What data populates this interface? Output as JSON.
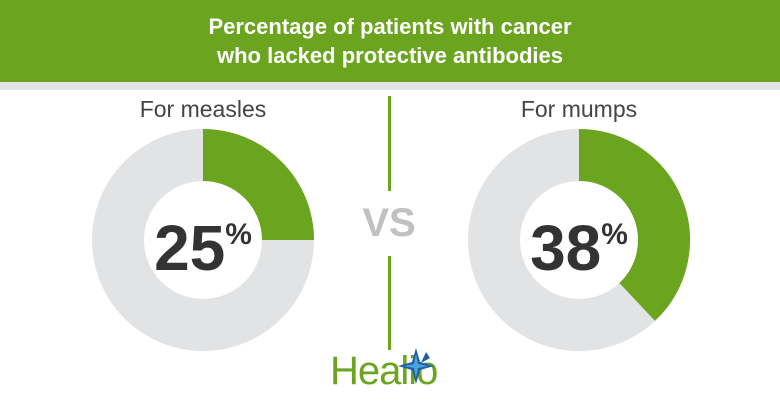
{
  "header": {
    "title_line1": "Percentage of patients with cancer",
    "title_line2": "who lacked protective antibodies"
  },
  "vs_label": "VS",
  "logo": {
    "text": "Healio",
    "icon": "star-burst-icon"
  },
  "colors": {
    "accent": "#6ba520",
    "track": "#e2e3e4",
    "value_text": "#333333",
    "vs_text": "#bfc1c3"
  },
  "chart_data": [
    {
      "type": "pie",
      "label": "For measles",
      "value": 25,
      "display_value": "25",
      "unit": "%"
    },
    {
      "type": "pie",
      "label": "For mumps",
      "value": 38,
      "display_value": "38",
      "unit": "%"
    }
  ]
}
